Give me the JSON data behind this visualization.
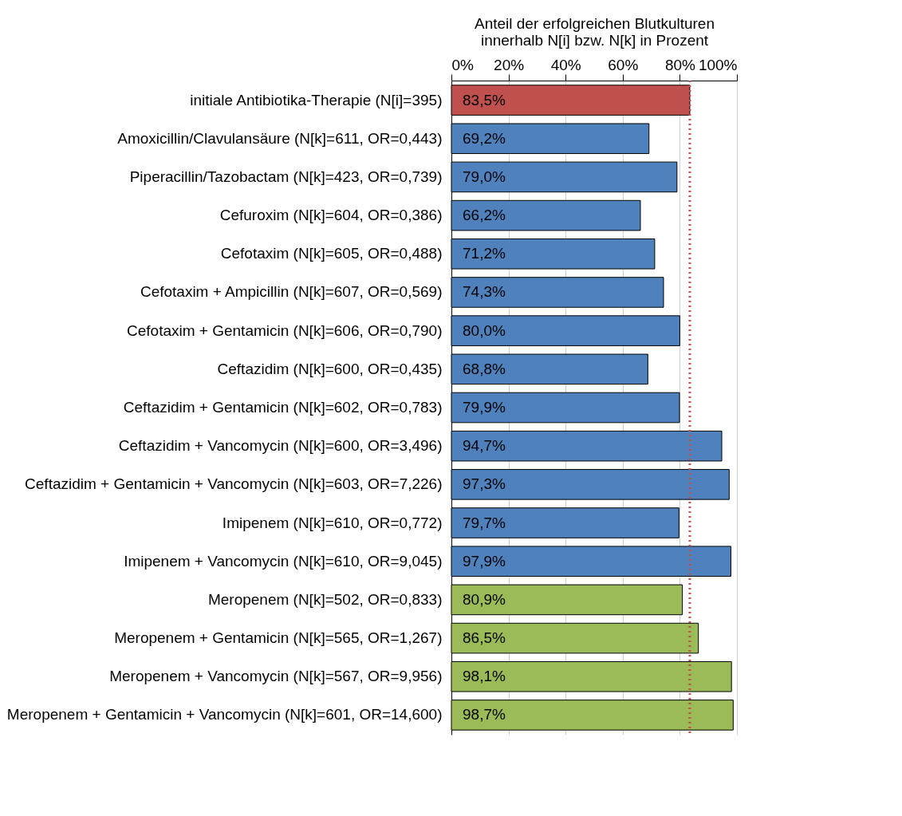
{
  "chart_data": {
    "type": "bar",
    "orientation": "horizontal",
    "xlabel": "Anteil der erfolgreichen Blutkulturen innerhalb N[i] bzw. N[k] in Prozent",
    "categories": [
      "initiale Antibiotika-Therapie (N[i]=395)",
      "Amoxicillin/Clavulansäure (N[k]=611, OR=0,443)",
      "Piperacillin/Tazobactam (N[k]=423, OR=0,739)",
      "Cefuroxim (N[k]=604, OR=0,386)",
      "Cefotaxim (N[k]=605, OR=0,488)",
      "Cefotaxim + Ampicillin (N[k]=607, OR=0,569)",
      "Cefotaxim + Gentamicin (N[k]=606, OR=0,790)",
      "Ceftazidim (N[k]=600, OR=0,435)",
      "Ceftazidim + Gentamicin (N[k]=602, OR=0,783)",
      "Ceftazidim + Vancomycin (N[k]=600, OR=3,496)",
      "Ceftazidim + Gentamicin + Vancomycin (N[k]=603, OR=7,226)",
      "Imipenem (N[k]=610, OR=0,772)",
      "Imipenem + Vancomycin (N[k]=610, OR=9,045)",
      "Meropenem (N[k]=502, OR=0,833)",
      "Meropenem + Gentamicin (N[k]=565, OR=1,267)",
      "Meropenem + Vancomycin (N[k]=567, OR=9,956)",
      "Meropenem + Gentamicin + Vancomycin (N[k]=601, OR=14,600)"
    ],
    "values": [
      83.5,
      69.2,
      79.0,
      66.2,
      71.2,
      74.3,
      80.0,
      68.8,
      79.9,
      94.7,
      97.3,
      79.7,
      97.9,
      80.9,
      86.5,
      98.1,
      98.7
    ],
    "value_labels": [
      "83,5%",
      "69,2%",
      "79,0%",
      "66,2%",
      "71,2%",
      "74,3%",
      "80,0%",
      "68,8%",
      "79,9%",
      "94,7%",
      "97,3%",
      "79,7%",
      "97,9%",
      "80,9%",
      "86,5%",
      "98,1%",
      "98,7%"
    ],
    "colors": [
      "#c0504d",
      "#4f81bd",
      "#4f81bd",
      "#4f81bd",
      "#4f81bd",
      "#4f81bd",
      "#4f81bd",
      "#4f81bd",
      "#4f81bd",
      "#4f81bd",
      "#4f81bd",
      "#4f81bd",
      "#4f81bd",
      "#9bbb59",
      "#9bbb59",
      "#9bbb59",
      "#9bbb59"
    ],
    "xlim": [
      0,
      100
    ],
    "xticks": [
      {
        "value": 0,
        "label": "0%"
      },
      {
        "value": 20,
        "label": "20%"
      },
      {
        "value": 40,
        "label": "40%"
      },
      {
        "value": 60,
        "label": "60%"
      },
      {
        "value": 80,
        "label": "80%"
      },
      {
        "value": 100,
        "label": "100%"
      }
    ],
    "grid": "x",
    "ref_lines": [
      {
        "axis": "x",
        "value": 83.5,
        "color": "#c0504d",
        "line_style": "dotted"
      }
    ]
  }
}
